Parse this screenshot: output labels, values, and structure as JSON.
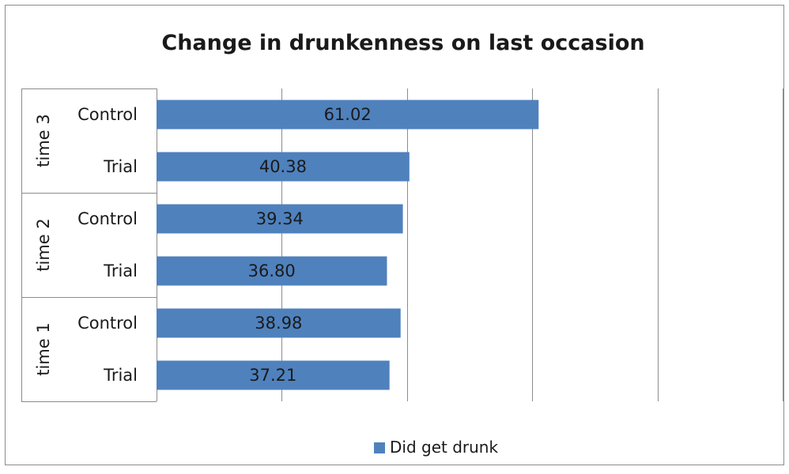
{
  "chart_data": {
    "type": "bar",
    "orientation": "horizontal",
    "title": "Change in drunkenness on last occasion",
    "groups": [
      {
        "label": "time 3",
        "categories": [
          "Control",
          "Trial"
        ]
      },
      {
        "label": "time 2",
        "categories": [
          "Control",
          "Trial"
        ]
      },
      {
        "label": "time 1",
        "categories": [
          "Control",
          "Trial"
        ]
      }
    ],
    "series": [
      {
        "name": "Did get drunk",
        "color": "#4F81BD",
        "values": [
          61.02,
          40.38,
          39.34,
          36.8,
          38.98,
          37.21
        ],
        "labels": [
          "61.02",
          "40.38",
          "39.34",
          "36.80",
          "38.98",
          "37.21"
        ]
      }
    ],
    "xlim": [
      0,
      100
    ],
    "x_gridlines": [
      20,
      40,
      60,
      80,
      100
    ],
    "x_tick_labels_shown": false,
    "grid": true,
    "legend_position": "bottom"
  }
}
